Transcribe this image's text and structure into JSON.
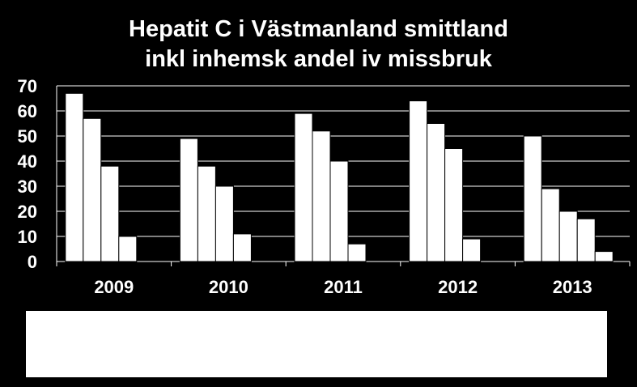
{
  "chart_data": {
    "type": "bar",
    "title_lines": [
      "Hepatit C i Västmanland smittland",
      "inkl inhemsk andel iv missbruk"
    ],
    "categories": [
      "2009",
      "2010",
      "2011",
      "2012",
      "2013"
    ],
    "groups": [
      {
        "category": "2009",
        "values": [
          67,
          57,
          38,
          10
        ]
      },
      {
        "category": "2010",
        "values": [
          49,
          38,
          30,
          11
        ]
      },
      {
        "category": "2011",
        "values": [
          59,
          52,
          40,
          7
        ]
      },
      {
        "category": "2012",
        "values": [
          64,
          55,
          45,
          9
        ]
      },
      {
        "category": "2013",
        "values": [
          50,
          29,
          20,
          17,
          4
        ]
      }
    ],
    "y_ticks": [
      "0",
      "10",
      "20",
      "30",
      "40",
      "50",
      "60",
      "70"
    ],
    "ylim": [
      0,
      70
    ],
    "grid": true,
    "colors": {
      "background": "#000000",
      "bars": "#ffffff",
      "bar_outline": "#000000",
      "grid": "#ffffff",
      "text": "#ffffff"
    }
  }
}
